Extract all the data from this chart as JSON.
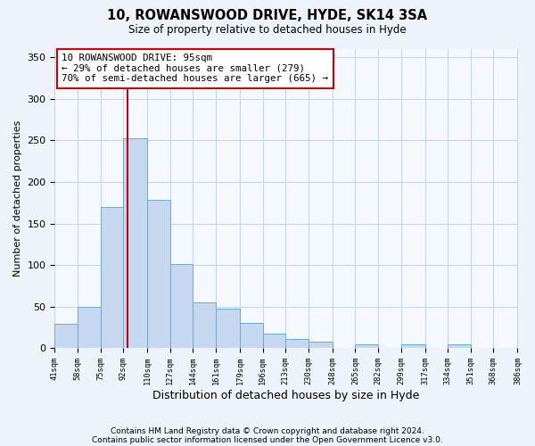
{
  "title": "10, ROWANSWOOD DRIVE, HYDE, SK14 3SA",
  "subtitle": "Size of property relative to detached houses in Hyde",
  "xlabel": "Distribution of detached houses by size in Hyde",
  "ylabel": "Number of detached properties",
  "bar_values": [
    29,
    50,
    170,
    253,
    178,
    101,
    55,
    48,
    30,
    17,
    11,
    8,
    0,
    4,
    0,
    4,
    0,
    4,
    0,
    0
  ],
  "bin_edges": [
    41,
    58,
    75,
    92,
    110,
    127,
    144,
    161,
    179,
    196,
    213,
    230,
    248,
    265,
    282,
    299,
    317,
    334,
    351,
    368,
    386
  ],
  "tick_labels": [
    "41sqm",
    "58sqm",
    "75sqm",
    "92sqm",
    "110sqm",
    "127sqm",
    "144sqm",
    "161sqm",
    "179sqm",
    "196sqm",
    "213sqm",
    "230sqm",
    "248sqm",
    "265sqm",
    "282sqm",
    "299sqm",
    "317sqm",
    "334sqm",
    "351sqm",
    "368sqm",
    "386sqm"
  ],
  "bar_color": "#c5d8f0",
  "bar_edge_color": "#6aaad4",
  "property_value": 95,
  "vline_color": "#cc0000",
  "annotation_text": "10 ROWANSWOOD DRIVE: 95sqm\n← 29% of detached houses are smaller (279)\n70% of semi-detached houses are larger (665) →",
  "annotation_box_edge_color": "#cc0000",
  "ylim": [
    0,
    360
  ],
  "yticks": [
    0,
    50,
    100,
    150,
    200,
    250,
    300,
    350
  ],
  "footer_line1": "Contains HM Land Registry data © Crown copyright and database right 2024.",
  "footer_line2": "Contains public sector information licensed under the Open Government Licence v3.0.",
  "background_color": "#eef2fb",
  "plot_bg_color": "#f5f8ff",
  "grid_color": "#c8d4e8"
}
